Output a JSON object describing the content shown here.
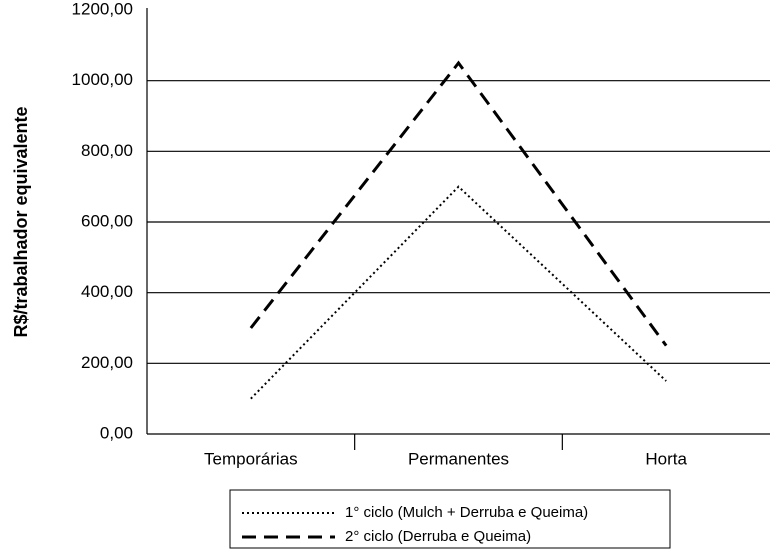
{
  "chart_data": {
    "type": "line",
    "y_label": "R$/trabalhador equivalente",
    "categories": [
      "Temporárias",
      "Permanentes",
      "Horta"
    ],
    "series": [
      {
        "name": "1° ciclo (Mulch + Derruba e Queima)",
        "color": "#000000",
        "style": "dotted",
        "values": [
          100,
          700,
          150
        ]
      },
      {
        "name": "2° ciclo (Derruba e Queima)",
        "color": "#000000",
        "style": "dashed",
        "values": [
          300,
          1050,
          250
        ]
      }
    ],
    "ylim": [
      0,
      1200
    ],
    "yticks": [
      {
        "value": 0,
        "label": "0,00"
      },
      {
        "value": 200,
        "label": "200,00"
      },
      {
        "value": 400,
        "label": "400,00"
      },
      {
        "value": 600,
        "label": "600,00"
      },
      {
        "value": 800,
        "label": "800,00"
      },
      {
        "value": 1000,
        "label": "1000,00"
      },
      {
        "value": 1200,
        "label": "1200,00"
      }
    ],
    "grid": true
  }
}
